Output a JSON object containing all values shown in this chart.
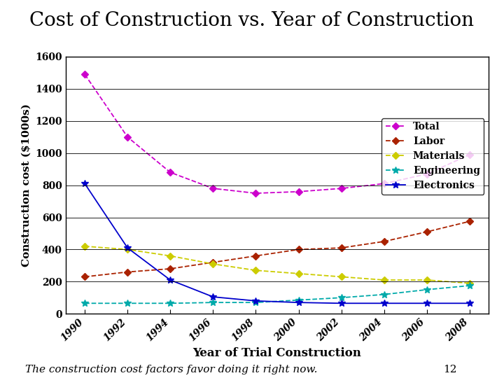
{
  "title": "Cost of Construction vs. Year of Construction",
  "xlabel": "Year of Trial Construction",
  "ylabel": "Construction cost ($1000s)",
  "subtitle": "The construction cost factors favor doing it right now.",
  "subtitle_number": "12",
  "years": [
    1990,
    1992,
    1994,
    1996,
    1998,
    2000,
    2002,
    2004,
    2006,
    2008
  ],
  "series": {
    "Total": {
      "values": [
        1490,
        1100,
        880,
        780,
        750,
        760,
        780,
        810,
        870,
        990
      ],
      "color": "#cc00cc",
      "marker": "D",
      "linestyle": "--",
      "markersize": 5
    },
    "Labor": {
      "values": [
        230,
        260,
        280,
        320,
        360,
        400,
        410,
        450,
        510,
        575
      ],
      "color": "#aa2200",
      "marker": "D",
      "linestyle": "--",
      "markersize": 5
    },
    "Materials": {
      "values": [
        420,
        400,
        360,
        310,
        270,
        250,
        230,
        210,
        210,
        190
      ],
      "color": "#cccc00",
      "marker": "D",
      "linestyle": "--",
      "markersize": 5
    },
    "Engineering": {
      "values": [
        65,
        65,
        65,
        70,
        70,
        85,
        100,
        120,
        150,
        175
      ],
      "color": "#00aaaa",
      "marker": "*",
      "linestyle": "--",
      "markersize": 7
    },
    "Electronics": {
      "values": [
        810,
        410,
        210,
        105,
        80,
        70,
        65,
        65,
        65,
        65
      ],
      "color": "#0000cc",
      "marker": "*",
      "linestyle": "-",
      "markersize": 7
    }
  },
  "ylim": [
    0,
    1600
  ],
  "yticks": [
    0,
    200,
    400,
    600,
    800,
    1000,
    1200,
    1400,
    1600
  ],
  "background_color": "#ffffff",
  "plot_bg_color": "#ffffff",
  "title_fontsize": 20,
  "axis_label_fontsize": 11,
  "tick_fontsize": 10,
  "legend_fontsize": 10
}
